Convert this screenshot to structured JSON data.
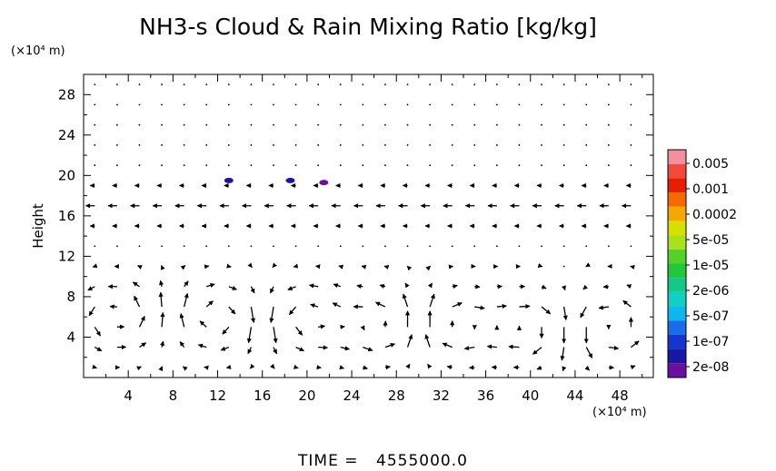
{
  "chart_data": {
    "type": "vector-field",
    "title": "NH3-s Cloud & Rain Mixing Ratio [kg/kg]",
    "ylabel": "Height",
    "xunit": "(×10⁴ m)",
    "yunit": "(×10⁴ m)",
    "xlim": [
      0,
      51
    ],
    "ylim": [
      0,
      30
    ],
    "xticks": [
      "4",
      "8",
      "12",
      "16",
      "20",
      "24",
      "28",
      "32",
      "36",
      "40",
      "44",
      "48"
    ],
    "yticks": [
      "4",
      "8",
      "12",
      "16",
      "20",
      "24",
      "28"
    ],
    "colorbar": {
      "labels": [
        "0.005",
        "0.001",
        "0.0002",
        "5e-05",
        "1e-05",
        "2e-06",
        "5e-07",
        "1e-07",
        "2e-08"
      ],
      "colors": [
        "#f48fa0",
        "#f04a3a",
        "#e81e00",
        "#f56a00",
        "#f5a800",
        "#d7e000",
        "#a8e21a",
        "#55d22a",
        "#22c83a",
        "#14c888",
        "#10cfc3",
        "#10b4ee",
        "#1a6de8",
        "#1435cf",
        "#1a16a4",
        "#6a10a0"
      ]
    },
    "cloud_patches": [
      {
        "x": 13.0,
        "y": 19.5,
        "color": "#1a16a4"
      },
      {
        "x": 18.5,
        "y": 19.5,
        "color": "#1a16a4"
      },
      {
        "x": 21.5,
        "y": 19.3,
        "color": "#6a10a0"
      }
    ],
    "grid": false
  },
  "footer": {
    "time_label": "TIME =",
    "time_value": "4555000.0"
  }
}
